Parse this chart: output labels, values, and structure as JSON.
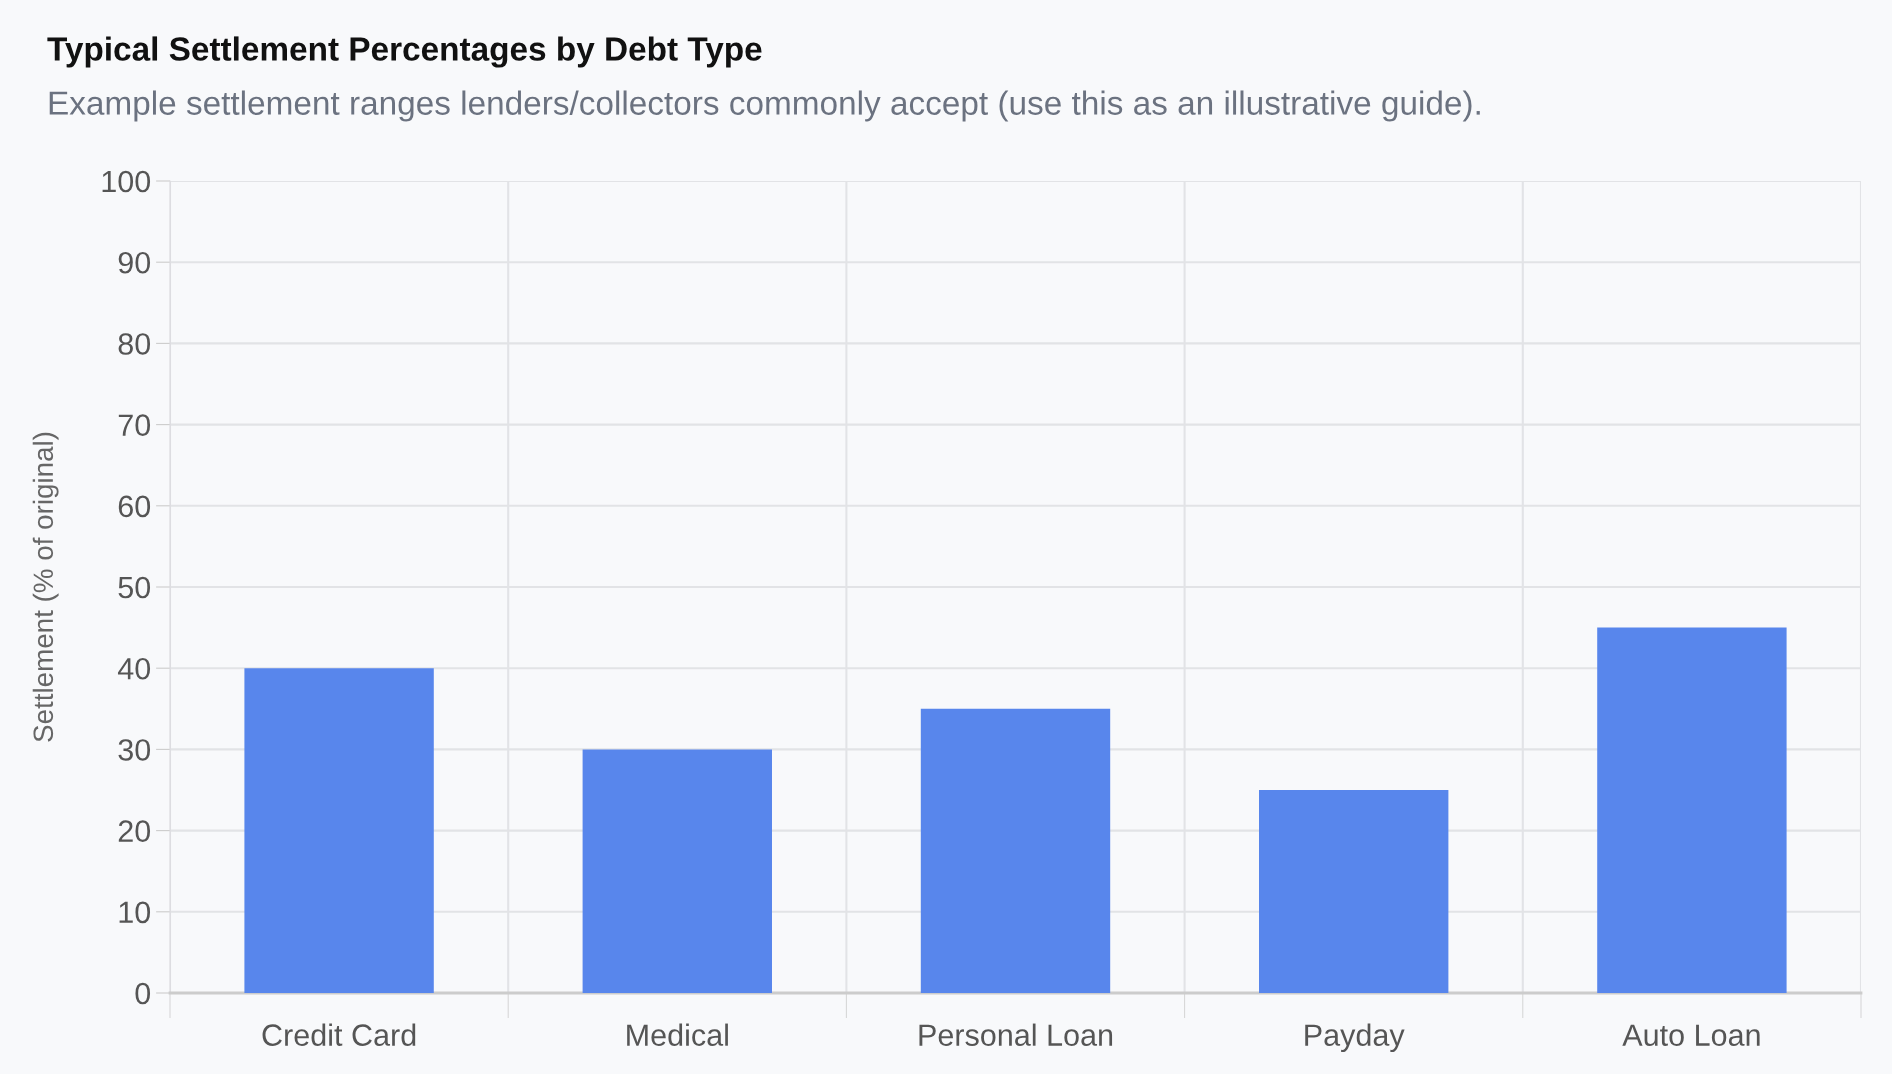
{
  "chart_data": {
    "type": "bar",
    "title": "Typical Settlement Percentages by Debt Type",
    "subtitle": "Example settlement ranges lenders/collectors commonly accept (use this as an illustrative guide).",
    "ylabel": "Settlement (% of original)",
    "categories": [
      "Credit Card",
      "Medical",
      "Personal Loan",
      "Payday",
      "Auto Loan"
    ],
    "values": [
      40,
      30,
      35,
      25,
      45
    ],
    "color": "#5886ec",
    "ylim": [
      0,
      100
    ],
    "yticks": [
      0,
      10,
      20,
      30,
      40,
      50,
      60,
      70,
      80,
      90,
      100
    ],
    "grid": true,
    "legend": false
  }
}
